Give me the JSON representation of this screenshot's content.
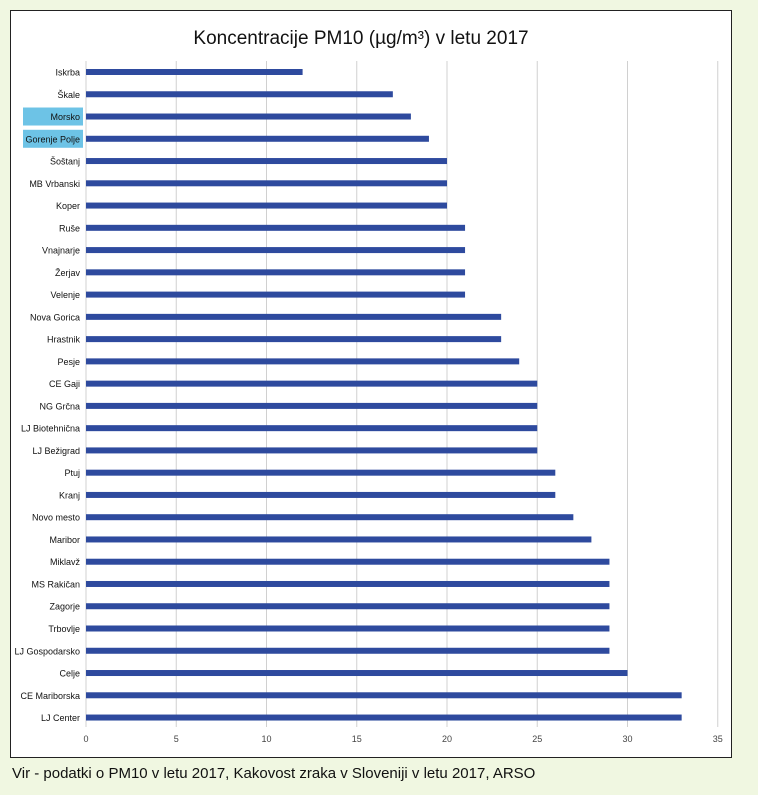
{
  "colors": {
    "bar": "#2e4a9e",
    "highlight": "#6dc3e6",
    "grid": "#d0d0d0",
    "page_background": "#f0f7e1"
  },
  "chart_data": {
    "type": "bar",
    "orientation": "horizontal",
    "title": "Koncentracije PM10 (µg/m³) v letu 2017",
    "xlabel": "",
    "ylabel": "",
    "xlim": [
      0,
      35
    ],
    "x_ticks": [
      0,
      5,
      10,
      15,
      20,
      25,
      30,
      35
    ],
    "grid": "vertical",
    "legend": "none",
    "categories": [
      "Iskrba",
      "Škale",
      "Morsko",
      "Gorenje Polje",
      "Šoštanj",
      "MB Vrbanski",
      "Koper",
      "Ruše",
      "Vnajnarje",
      "Žerjav",
      "Velenje",
      "Nova Gorica",
      "Hrastnik",
      "Pesje",
      "CE Gaji",
      "NG Grčna",
      "LJ Biotehnična",
      "LJ Bežigrad",
      "Ptuj",
      "Kranj",
      "Novo mesto",
      "Maribor",
      "Miklavž",
      "MS Rakičan",
      "Zagorje",
      "Trbovlje",
      "LJ Gospodarsko",
      "Celje",
      "CE Mariborska",
      "LJ Center"
    ],
    "values": [
      12,
      17,
      18,
      19,
      20,
      20,
      20,
      21,
      21,
      21,
      21,
      23,
      23,
      24,
      25,
      25,
      25,
      25,
      26,
      26,
      27,
      28,
      29,
      29,
      29,
      29,
      29,
      30,
      33,
      33
    ],
    "highlighted_categories": [
      "Morsko",
      "Gorenje Polje"
    ]
  },
  "caption": "Vir - podatki o PM10 v letu 2017, Kakovost zraka v Sloveniji v letu 2017, ARSO"
}
